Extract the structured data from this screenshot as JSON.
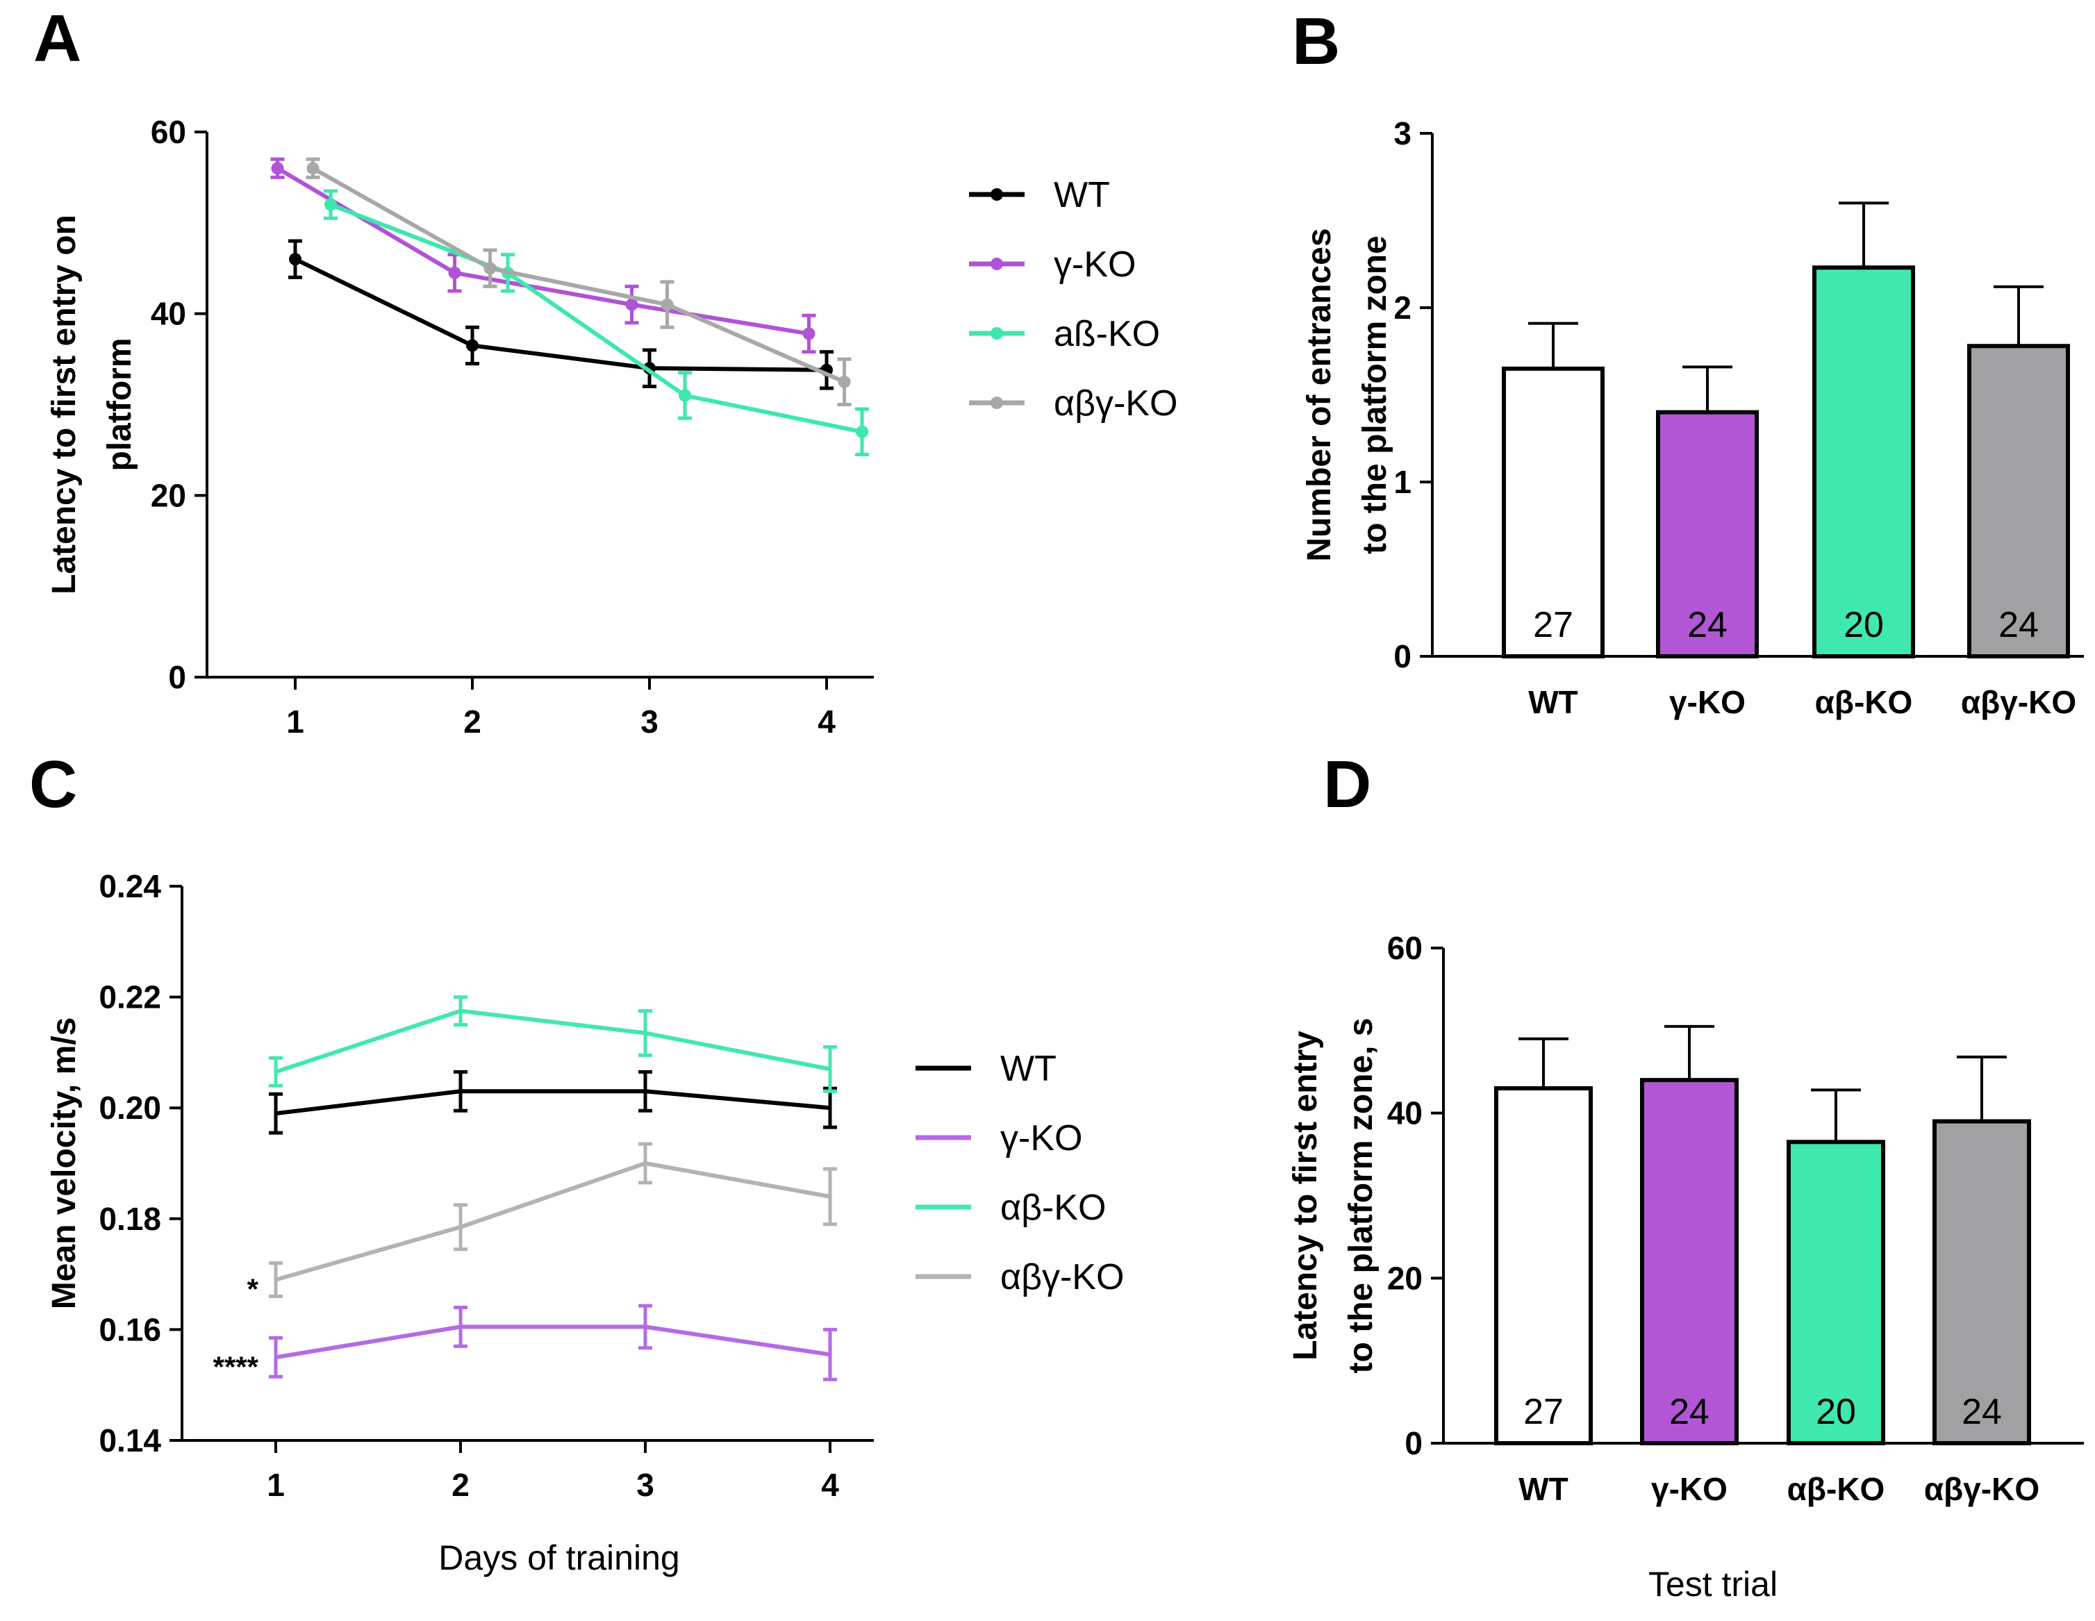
{
  "chart_data": [
    {
      "panel": "A",
      "type": "line",
      "title": "",
      "xlabel": "",
      "ylabel": "Latency to first entry on platform",
      "ylabel_lines": [
        "Latency to first entry on",
        "platform"
      ],
      "x": [
        1,
        2,
        3,
        4
      ],
      "xticks": [
        "1",
        "2",
        "3",
        "4"
      ],
      "ylim": [
        0,
        60
      ],
      "yticks": [
        "0",
        "20",
        "40",
        "60"
      ],
      "legend_position": "right",
      "series": [
        {
          "name": "WT",
          "color": "#000000",
          "values": [
            46,
            36.5,
            34,
            33.8
          ],
          "errors": [
            2,
            2,
            2,
            2
          ],
          "offset": 0
        },
        {
          "name": "γ-KO",
          "color": "#b053d6",
          "values": [
            56,
            44.5,
            41,
            37.8
          ],
          "errors": [
            1,
            2,
            2,
            2
          ],
          "offset": -0.1
        },
        {
          "name": "aß-KO",
          "color": "#3ee8ac",
          "values": [
            52,
            44.5,
            31,
            27
          ],
          "errors": [
            1.5,
            2,
            2.5,
            2.5
          ],
          "offset": 0.2
        },
        {
          "name": "αβγ-KO",
          "color": "#a8a8a8",
          "values": [
            56,
            45,
            41,
            32.5
          ],
          "errors": [
            1,
            2,
            2.5,
            2.5
          ],
          "offset": 0.1
        }
      ]
    },
    {
      "panel": "B",
      "type": "bar",
      "title": "",
      "xlabel": "",
      "ylabel": "Number of entrances to the platform zone",
      "ylabel_lines": [
        "Number of entrances",
        "to the platform zone"
      ],
      "categories": [
        "WT",
        "γ-KO",
        "αβ-KO",
        "αβγ-KO"
      ],
      "values": [
        1.65,
        1.4,
        2.23,
        1.78
      ],
      "errors": [
        0.26,
        0.26,
        0.37,
        0.34
      ],
      "n_labels": [
        "27",
        "24",
        "20",
        "24"
      ],
      "colors": [
        "#ffffff",
        "#b356d6",
        "#3fe9ae",
        "#a1a1a3"
      ],
      "ylim": [
        0,
        3
      ],
      "yticks": [
        "0",
        "1",
        "2",
        "3"
      ]
    },
    {
      "panel": "C",
      "type": "line",
      "title": "",
      "xlabel": "Days of training",
      "ylabel": "Mean velocity,  m/s",
      "ylabel_lines": [
        "Mean velocity,  m/s"
      ],
      "x": [
        1,
        2,
        3,
        4
      ],
      "xticks": [
        "1",
        "2",
        "3",
        "4"
      ],
      "ylim": [
        0.14,
        0.24
      ],
      "yticks": [
        "0.14",
        "0.16",
        "0.18",
        "0.20",
        "0.22",
        "0.24"
      ],
      "legend_position": "right",
      "series": [
        {
          "name": "WT",
          "color": "#000000",
          "values": [
            0.199,
            0.203,
            0.203,
            0.2
          ],
          "errors": [
            0.0035,
            0.0035,
            0.0035,
            0.0035
          ],
          "offset": 0
        },
        {
          "name": "γ-KO",
          "color": "#b46be6",
          "values": [
            0.155,
            0.1605,
            0.1605,
            0.1555
          ],
          "errors": [
            0.0035,
            0.0035,
            0.0038,
            0.0045
          ],
          "offset": 0
        },
        {
          "name": "αβ-KO",
          "color": "#44e7b0",
          "values": [
            0.2065,
            0.2175,
            0.2135,
            0.207
          ],
          "errors": [
            0.0025,
            0.0025,
            0.004,
            0.004
          ],
          "offset": 0
        },
        {
          "name": "αβγ-KO",
          "color": "#b3b3b3",
          "values": [
            0.169,
            0.1785,
            0.19,
            0.184
          ],
          "errors": [
            0.003,
            0.004,
            0.0035,
            0.005
          ],
          "offset": 0
        }
      ],
      "annotations": [
        "*",
        "****"
      ]
    },
    {
      "panel": "D",
      "type": "bar",
      "title": "",
      "xlabel": "Test trial",
      "ylabel": "Latency to  first entry to the platform zone, s",
      "ylabel_lines": [
        "Latency to  first entry",
        "to the platform zone, s"
      ],
      "categories": [
        "WT",
        "γ-KO",
        "αβ-KO",
        "αβγ-KO"
      ],
      "values": [
        43,
        44,
        36.5,
        39
      ],
      "errors": [
        6,
        6.5,
        6.3,
        7.8
      ],
      "n_labels": [
        "27",
        "24",
        "20",
        "24"
      ],
      "colors": [
        "#ffffff",
        "#b356d6",
        "#3fe9ae",
        "#a1a1a3"
      ],
      "ylim": [
        0,
        60
      ],
      "yticks": [
        "0",
        "20",
        "40",
        "60"
      ]
    }
  ]
}
